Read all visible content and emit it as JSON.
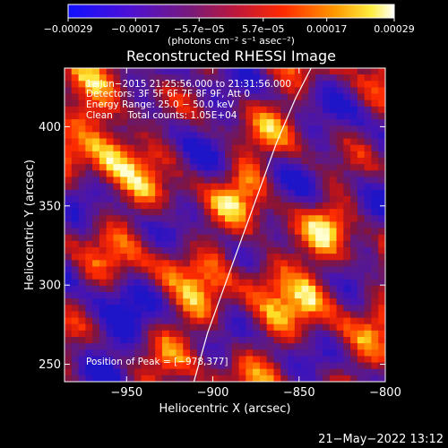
{
  "chart_data": {
    "type": "heatmap",
    "title": "Reconstructed RHESSI Image",
    "xlabel": "Heliocentric X (arcsec)",
    "ylabel": "Heliocentric Y (arcsec)",
    "xlim": [
      -986,
      -800
    ],
    "ylim": [
      239,
      437
    ],
    "xticks": [
      -950,
      -900,
      -850,
      -800
    ],
    "yticks": [
      250,
      300,
      350,
      400
    ],
    "xtick_labels": [
      "−950",
      "−900",
      "−850",
      "−800"
    ],
    "ytick_labels": [
      "250",
      "300",
      "350",
      "400"
    ],
    "colorbar": {
      "range": [
        -0.00029,
        0.00029
      ],
      "tick_values": [
        -0.00029,
        -0.00017,
        -5.7e-05,
        5.7e-05,
        0.00017,
        0.00029
      ],
      "tick_labels": [
        "−0.00029",
        "−0.00017",
        "−5.7e−05",
        "5.7e−05",
        "0.00017",
        "0.00029"
      ],
      "unit_label": "(photons cm⁻² s⁻¹ asec⁻²)"
    },
    "annotations": {
      "time_range": "1−Jun−2015 21:25:56.000 to 21:31:56.000",
      "detectors": "Detectors: 3F 5F 6F 7F 8F 9F, Att 0",
      "energy": "Energy Range: 25.0 − 50.0 keV",
      "clean": "Clean     Total counts: 1.05E+04",
      "peak": "Position of Peak = [−978,377]"
    },
    "peak_position": [
      -978,
      377
    ],
    "limb_curve": {
      "x": [
        -911,
        -903,
        -893,
        -883,
        -873,
        -863,
        -852,
        -843
      ],
      "y": [
        239,
        270,
        300,
        330,
        360,
        390,
        418,
        437
      ]
    },
    "image_grid": {
      "nx": 46,
      "ny": 49,
      "colormap": "blue-purple-red-yellow-white"
    }
  },
  "footer": {
    "timestamp": "21−May−2022 13:12"
  }
}
